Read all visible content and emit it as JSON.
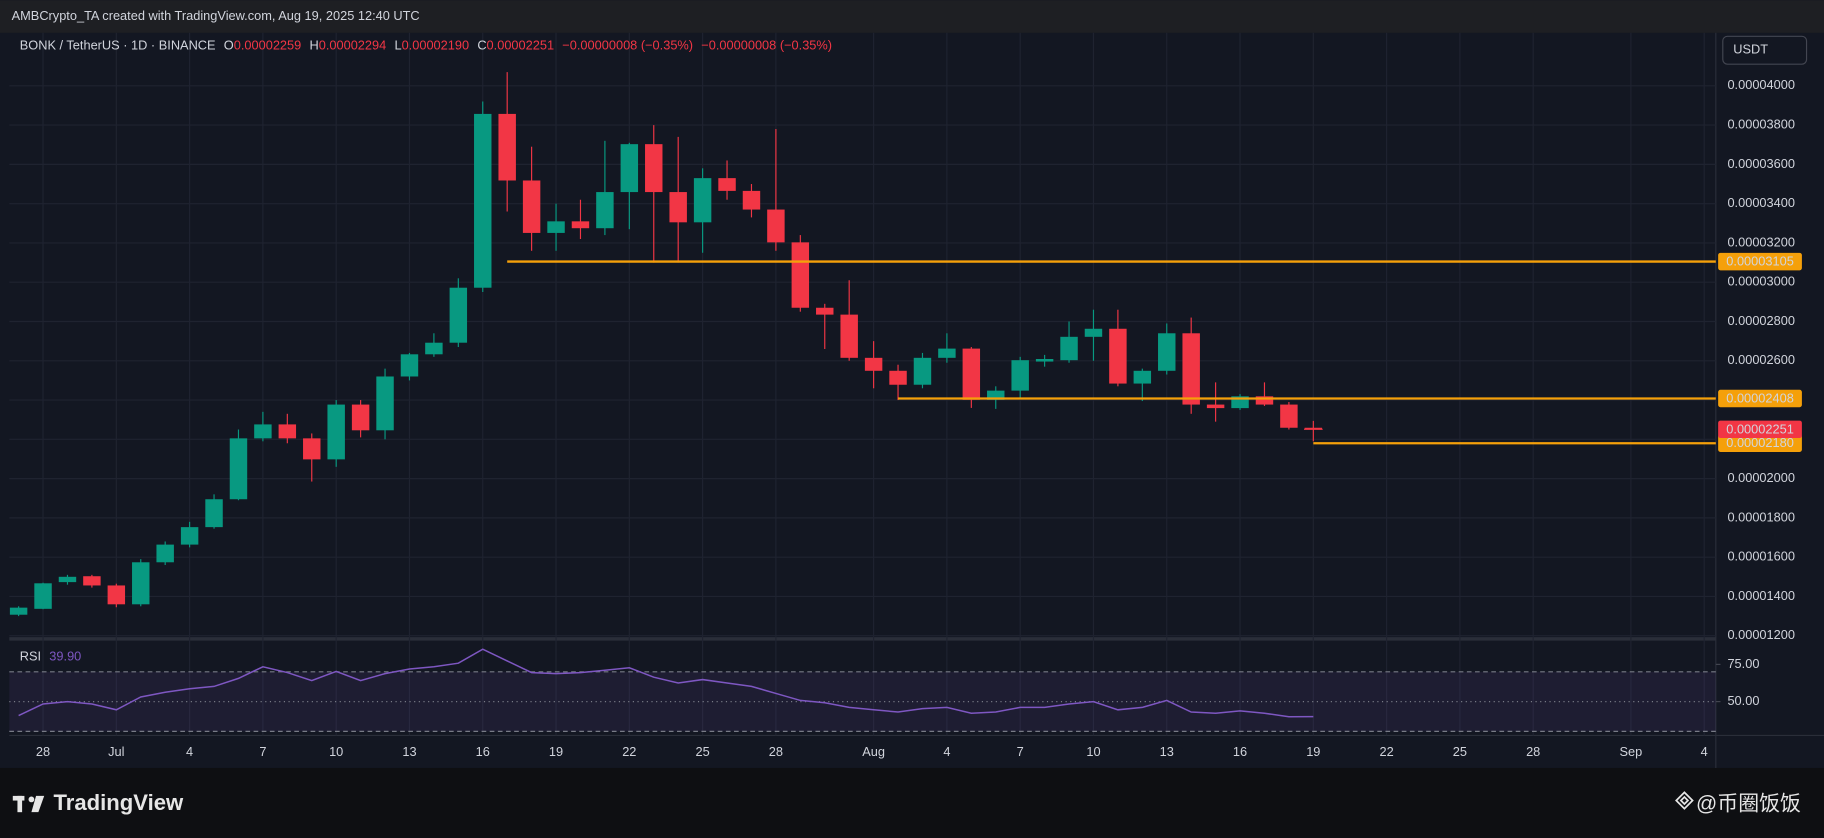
{
  "header": {
    "attribution": "AMBCrypto_TA created with TradingView.com, Aug 19, 2025 12:40 UTC",
    "symbol": "BONK / TetherUS · 1D · BINANCE"
  },
  "chart_data": [
    {
      "type": "candlestick",
      "ohlc_letters": [
        "O",
        "H",
        "L",
        "C"
      ],
      "ohlc_labels": [
        "0.00002259",
        "0.00002294",
        "0.00002190",
        "0.00002251"
      ],
      "change_labels": [
        "−0.00000008 (−0.35%)",
        "−0.00000008 (−0.35%)"
      ],
      "axis_unit": "USDT",
      "up_color": "#089981",
      "down_color": "#f23645",
      "level_color": "#f5a00a",
      "categories": [
        null,
        "28",
        null,
        null,
        "Jul",
        null,
        null,
        "4",
        null,
        null,
        "7",
        null,
        null,
        "10",
        null,
        null,
        "13",
        null,
        null,
        "16",
        null,
        null,
        "19",
        null,
        null,
        "22",
        null,
        null,
        "25",
        null,
        null,
        "28",
        null,
        null,
        null,
        "Aug",
        null,
        null,
        "4",
        null,
        null,
        "7",
        null,
        null,
        "10",
        null,
        null,
        "13",
        null,
        null,
        "16",
        null,
        null,
        "19",
        null,
        null,
        "22",
        null,
        null,
        "25",
        null,
        null,
        "28",
        null,
        null,
        null,
        "Sep",
        null,
        null,
        "4"
      ],
      "open": [
        1.307e-05,
        1.337e-05,
        1.473e-05,
        1.503e-05,
        1.456e-05,
        1.36e-05,
        1.574e-05,
        1.664e-05,
        1.753e-05,
        1.895e-05,
        2.205e-05,
        2.276e-05,
        2.205e-05,
        2.098e-05,
        2.377e-05,
        2.246e-05,
        2.52e-05,
        2.633e-05,
        2.692e-05,
        2.972e-05,
        3.857e-05,
        3.518e-05,
        3.251e-05,
        3.31e-05,
        3.275e-05,
        3.459e-05,
        3.703e-05,
        3.459e-05,
        3.305e-05,
        3.53e-05,
        3.465e-05,
        3.37e-05,
        3.203e-05,
        2.87e-05,
        2.835e-05,
        2.615e-05,
        2.549e-05,
        2.478e-05,
        2.615e-05,
        2.662e-05,
        2.401e-05,
        2.448e-05,
        2.596e-05,
        2.603e-05,
        2.722e-05,
        2.763e-05,
        2.484e-05,
        2.549e-05,
        2.74e-05,
        2.377e-05,
        2.359e-05,
        2.419e-05,
        2.377e-05,
        2.259e-05,
        null,
        null,
        null,
        null,
        null,
        null,
        null,
        null,
        null,
        null,
        null,
        null,
        null,
        null,
        null,
        null
      ],
      "high": [
        1.35e-05,
        1.47e-05,
        1.51e-05,
        1.51e-05,
        1.465e-05,
        1.59e-05,
        1.68e-05,
        1.78e-05,
        1.92e-05,
        2.25e-05,
        2.34e-05,
        2.33e-05,
        2.23e-05,
        2.4e-05,
        2.4e-05,
        2.56e-05,
        2.64e-05,
        2.74e-05,
        3.02e-05,
        3.92e-05,
        4.07e-05,
        3.69e-05,
        3.4e-05,
        3.42e-05,
        3.72e-05,
        3.71e-05,
        3.8e-05,
        3.74e-05,
        3.58e-05,
        3.62e-05,
        3.5e-05,
        3.78e-05,
        3.24e-05,
        2.89e-05,
        3.01e-05,
        2.7e-05,
        2.58e-05,
        2.64e-05,
        2.74e-05,
        2.67e-05,
        2.47e-05,
        2.62e-05,
        2.63e-05,
        2.8e-05,
        2.86e-05,
        2.86e-05,
        2.56e-05,
        2.79e-05,
        2.82e-05,
        2.49e-05,
        2.43e-05,
        2.49e-05,
        2.39e-05,
        2.294e-05,
        null,
        null,
        null,
        null,
        null,
        null,
        null,
        null,
        null,
        null,
        null,
        null,
        null,
        null,
        null,
        null
      ],
      "low": [
        1.3e-05,
        1.335e-05,
        1.46e-05,
        1.445e-05,
        1.345e-05,
        1.35e-05,
        1.56e-05,
        1.65e-05,
        1.745e-05,
        1.89e-05,
        2.19e-05,
        2.18e-05,
        1.985e-05,
        2.06e-05,
        2.21e-05,
        2.2e-05,
        2.5e-05,
        2.62e-05,
        2.67e-05,
        2.95e-05,
        3.36e-05,
        3.16e-05,
        3.16e-05,
        3.22e-05,
        3.24e-05,
        3.27e-05,
        3.1e-05,
        3.1e-05,
        3.15e-05,
        3.42e-05,
        3.33e-05,
        3.16e-05,
        2.85e-05,
        2.66e-05,
        2.6e-05,
        2.46e-05,
        2.4e-05,
        2.46e-05,
        2.59e-05,
        2.36e-05,
        2.355e-05,
        2.41e-05,
        2.57e-05,
        2.59e-05,
        2.6e-05,
        2.47e-05,
        2.395e-05,
        2.53e-05,
        2.33e-05,
        2.29e-05,
        2.35e-05,
        2.37e-05,
        2.25e-05,
        2.19e-05,
        null,
        null,
        null,
        null,
        null,
        null,
        null,
        null,
        null,
        null,
        null,
        null,
        null,
        null,
        null,
        null
      ],
      "close": [
        1.343e-05,
        1.467e-05,
        1.5e-05,
        1.456e-05,
        1.36e-05,
        1.574e-05,
        1.664e-05,
        1.753e-05,
        1.895e-05,
        2.205e-05,
        2.276e-05,
        2.205e-05,
        2.098e-05,
        2.377e-05,
        2.246e-05,
        2.52e-05,
        2.633e-05,
        2.692e-05,
        2.972e-05,
        3.857e-05,
        3.518e-05,
        3.251e-05,
        3.31e-05,
        3.275e-05,
        3.459e-05,
        3.703e-05,
        3.459e-05,
        3.305e-05,
        3.53e-05,
        3.465e-05,
        3.37e-05,
        3.203e-05,
        2.87e-05,
        2.835e-05,
        2.615e-05,
        2.549e-05,
        2.478e-05,
        2.615e-05,
        2.662e-05,
        2.401e-05,
        2.448e-05,
        2.603e-05,
        2.609e-05,
        2.722e-05,
        2.763e-05,
        2.484e-05,
        2.549e-05,
        2.74e-05,
        2.377e-05,
        2.359e-05,
        2.419e-05,
        2.377e-05,
        2.259e-05,
        2.251e-05,
        null,
        null,
        null,
        null,
        null,
        null,
        null,
        null,
        null,
        null,
        null,
        null,
        null,
        null,
        null,
        null
      ],
      "ylim": [
        1.19e-05,
        4.27e-05
      ],
      "yticks": [
        {
          "value": 1.2e-05,
          "label": "0.00001200"
        },
        {
          "value": 1.4e-05,
          "label": "0.00001400"
        },
        {
          "value": 1.6e-05,
          "label": "0.00001600"
        },
        {
          "value": 1.8e-05,
          "label": "0.00001800"
        },
        {
          "value": 2e-05,
          "label": "0.00002000"
        },
        {
          "value": 2.2e-05,
          "label": "0.00002200"
        },
        {
          "value": 2.4e-05,
          "label": "0.00002400"
        },
        {
          "value": 2.6e-05,
          "label": "0.00002600"
        },
        {
          "value": 2.8e-05,
          "label": "0.00002800"
        },
        {
          "value": 3e-05,
          "label": "0.00003000"
        },
        {
          "value": 3.2e-05,
          "label": "0.00003200"
        },
        {
          "value": 3.4e-05,
          "label": "0.00003400"
        },
        {
          "value": 3.6e-05,
          "label": "0.00003600"
        },
        {
          "value": 3.8e-05,
          "label": "0.00003800"
        },
        {
          "value": 4e-05,
          "label": "0.00004000"
        }
      ],
      "levels": [
        {
          "value": 3.105e-05,
          "label": "0.00003105"
        },
        {
          "value": 2.408e-05,
          "label": "0.00002408"
        },
        {
          "value": 2.18e-05,
          "label": "0.00002180"
        }
      ],
      "last_price": {
        "value": 2.251e-05,
        "label": "0.00002251"
      },
      "grid": true
    },
    {
      "type": "line",
      "name": "RSI",
      "value_label": "39.90",
      "color": "#7e57c2",
      "values": [
        40.6,
        48.4,
        50,
        48.4,
        44.5,
        53.1,
        56.3,
        58.6,
        60.2,
        65.6,
        73.4,
        69.5,
        64.1,
        70.3,
        64.1,
        68.8,
        71.9,
        73.4,
        75.8,
        85.2,
        77.3,
        69.5,
        68.8,
        69.5,
        71.1,
        72.7,
        66.4,
        62.5,
        64.8,
        62.5,
        60.2,
        55.5,
        50.8,
        49.2,
        46.1,
        44.5,
        43.0,
        45.3,
        46.1,
        42.2,
        43.0,
        46.1,
        46.1,
        48.4,
        50,
        44.5,
        46.1,
        50.8,
        43.0,
        42.2,
        43.8,
        42.2,
        39.8,
        39.9,
        null,
        null,
        null,
        null,
        null,
        null,
        null,
        null,
        null,
        null,
        null,
        null,
        null,
        null,
        null,
        null
      ],
      "ylim": [
        27.3,
        89.8
      ],
      "yticks": [
        {
          "value": 75,
          "label": "75.00"
        },
        {
          "value": 50,
          "label": "50.00"
        }
      ],
      "bands": [
        70,
        50,
        30
      ]
    }
  ],
  "footer": {
    "brand": "TradingView",
    "watermark": "@币圈饭饭"
  }
}
